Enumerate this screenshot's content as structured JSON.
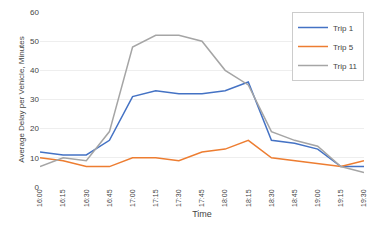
{
  "chart_data": {
    "type": "line",
    "xlabel": "Time",
    "ylabel": "Average Delay per Vehicle, Minutes",
    "categories": [
      "16:00",
      "16:15",
      "16:30",
      "16:45",
      "17:00",
      "17:15",
      "17:30",
      "17:45",
      "18:00",
      "18:15",
      "18:30",
      "18:45",
      "19:00",
      "19:15",
      "19:30"
    ],
    "series": [
      {
        "name": "Trip 1",
        "color": "#4472C4",
        "values": [
          12,
          11,
          11,
          16,
          31,
          33,
          32,
          32,
          33,
          36,
          16,
          15,
          13,
          7,
          7
        ]
      },
      {
        "name": "Trip 5",
        "color": "#ED7D31",
        "values": [
          10,
          9,
          7,
          7,
          10,
          10,
          9,
          12,
          13,
          16,
          10,
          9,
          8,
          7,
          9
        ]
      },
      {
        "name": "Trip 11",
        "color": "#A5A5A5",
        "values": [
          7,
          10,
          9,
          19,
          48,
          52,
          52,
          50,
          40,
          35,
          19,
          16,
          14,
          7,
          5
        ]
      }
    ],
    "ylim": [
      0,
      60
    ],
    "yticks": [
      0,
      10,
      20,
      30,
      40,
      50,
      60
    ],
    "grid": true,
    "legend": "upper right"
  }
}
